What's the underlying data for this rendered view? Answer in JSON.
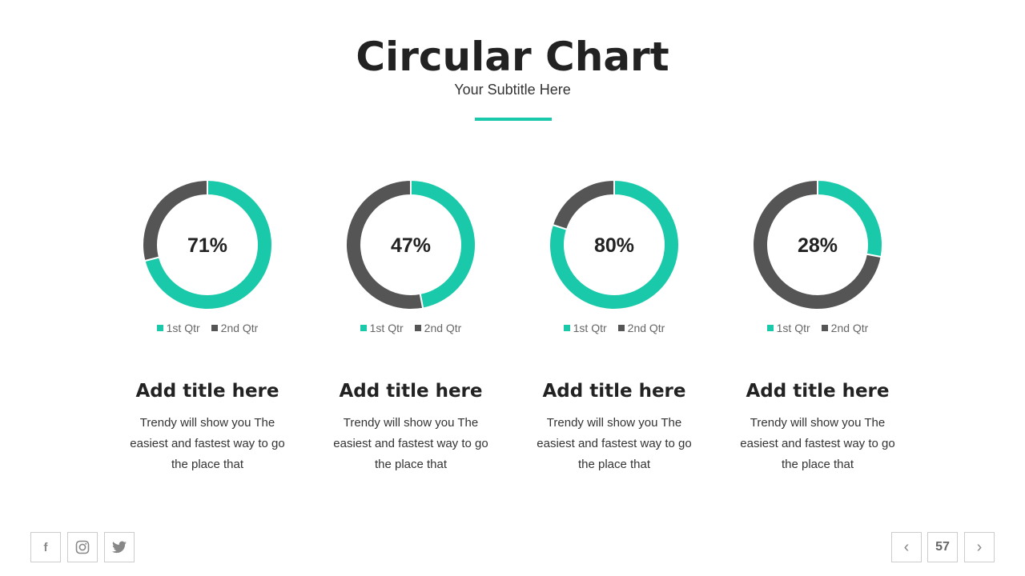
{
  "header": {
    "title": "Circular Chart",
    "subtitle": "Your Subtitle Here"
  },
  "colors": {
    "accent": "#19c9aa",
    "secondary": "#555555"
  },
  "chart_data": [
    {
      "type": "pie",
      "variant": "donut",
      "label": "71%",
      "categories": [
        "1st Qtr",
        "2nd Qtr"
      ],
      "values": [
        71,
        29
      ]
    },
    {
      "type": "pie",
      "variant": "donut",
      "label": "47%",
      "categories": [
        "1st Qtr",
        "2nd Qtr"
      ],
      "values": [
        47,
        53
      ]
    },
    {
      "type": "pie",
      "variant": "donut",
      "label": "80%",
      "categories": [
        "1st Qtr",
        "2nd Qtr"
      ],
      "values": [
        80,
        20
      ]
    },
    {
      "type": "pie",
      "variant": "donut",
      "label": "28%",
      "categories": [
        "1st Qtr",
        "2nd Qtr"
      ],
      "values": [
        28,
        72
      ]
    }
  ],
  "cards": [
    {
      "title": "Add title here",
      "desc": "Trendy will show you The easiest and fastest way to go the place that"
    },
    {
      "title": "Add title here",
      "desc": "Trendy will show you The easiest and fastest way to go the place that"
    },
    {
      "title": "Add title here",
      "desc": "Trendy will show you The easiest and fastest way to go the place that"
    },
    {
      "title": "Add title here",
      "desc": "Trendy will show you The easiest and fastest way to go the place that"
    }
  ],
  "footer": {
    "social": [
      "facebook-icon",
      "instagram-icon",
      "twitter-icon"
    ],
    "page_number": "57"
  }
}
